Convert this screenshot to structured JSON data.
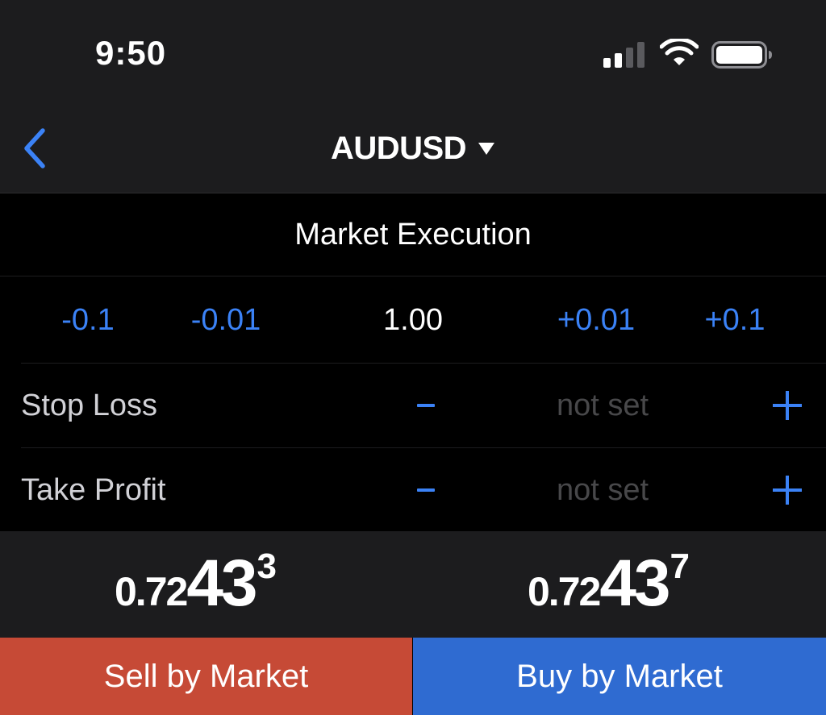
{
  "status_bar": {
    "time": "9:50"
  },
  "nav": {
    "symbol": "AUDUSD"
  },
  "order": {
    "execution_type": "Market Execution",
    "volume": {
      "decrease_large": "-0.1",
      "decrease_small": "-0.01",
      "value": "1.00",
      "increase_small": "+0.01",
      "increase_large": "+0.1"
    },
    "stop_loss": {
      "label": "Stop Loss",
      "value": "not set"
    },
    "take_profit": {
      "label": "Take Profit",
      "value": "not set"
    }
  },
  "prices": {
    "sell": {
      "prefix": "0.72",
      "big": "43",
      "pip": "3"
    },
    "buy": {
      "prefix": "0.72",
      "big": "43",
      "pip": "7"
    }
  },
  "actions": {
    "sell_label": "Sell by Market",
    "buy_label": "Buy by Market"
  },
  "colors": {
    "accent_blue": "#3b82f6",
    "sell_red": "#c64a36",
    "buy_blue": "#2f6bd1",
    "bar_background": "#1c1c1e"
  },
  "icons": {
    "back": "chevron-left-icon",
    "dropdown": "caret-down-icon",
    "signal": "cellular-signal-icon",
    "wifi": "wifi-icon",
    "battery": "battery-icon"
  }
}
